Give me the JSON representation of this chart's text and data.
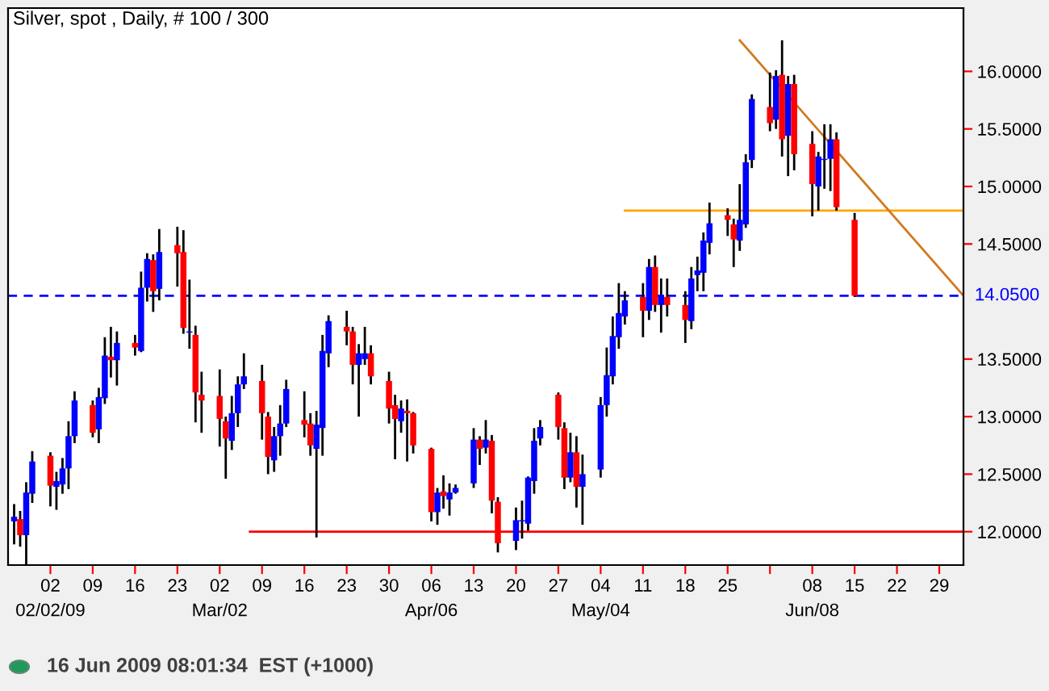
{
  "chart_data": {
    "type": "candlestick",
    "title": "Silver, spot , Daily, # 100 / 300",
    "x": [
      "2009-01-27",
      "2009-01-28",
      "2009-01-29",
      "2009-01-30",
      "2009-02-02",
      "2009-02-03",
      "2009-02-04",
      "2009-02-05",
      "2009-02-06",
      "2009-02-09",
      "2009-02-10",
      "2009-02-11",
      "2009-02-12",
      "2009-02-13",
      "2009-02-16",
      "2009-02-17",
      "2009-02-18",
      "2009-02-19",
      "2009-02-20",
      "2009-02-23",
      "2009-02-24",
      "2009-02-25",
      "2009-02-26",
      "2009-02-27",
      "2009-03-02",
      "2009-03-03",
      "2009-03-04",
      "2009-03-05",
      "2009-03-06",
      "2009-03-09",
      "2009-03-10",
      "2009-03-11",
      "2009-03-12",
      "2009-03-13",
      "2009-03-16",
      "2009-03-17",
      "2009-03-18",
      "2009-03-19",
      "2009-03-20",
      "2009-03-23",
      "2009-03-24",
      "2009-03-25",
      "2009-03-26",
      "2009-03-27",
      "2009-03-30",
      "2009-03-31",
      "2009-04-01",
      "2009-04-02",
      "2009-04-03",
      "2009-04-06",
      "2009-04-07",
      "2009-04-08",
      "2009-04-09",
      "2009-04-10",
      "2009-04-13",
      "2009-04-14",
      "2009-04-15",
      "2009-04-16",
      "2009-04-17",
      "2009-04-20",
      "2009-04-21",
      "2009-04-22",
      "2009-04-23",
      "2009-04-24",
      "2009-04-27",
      "2009-04-28",
      "2009-04-29",
      "2009-04-30",
      "2009-05-01",
      "2009-05-04",
      "2009-05-05",
      "2009-05-06",
      "2009-05-07",
      "2009-05-08",
      "2009-05-11",
      "2009-05-12",
      "2009-05-13",
      "2009-05-14",
      "2009-05-15",
      "2009-05-18",
      "2009-05-19",
      "2009-05-20",
      "2009-05-21",
      "2009-05-22",
      "2009-05-25",
      "2009-05-26",
      "2009-05-27",
      "2009-05-28",
      "2009-05-29",
      "2009-06-01",
      "2009-06-02",
      "2009-06-03",
      "2009-06-04",
      "2009-06-05",
      "2009-06-08",
      "2009-06-09",
      "2009-06-10",
      "2009-06-11",
      "2009-06-12",
      "2009-06-15"
    ],
    "ohlc": [
      [
        12.09,
        12.24,
        11.89,
        12.13
      ],
      [
        12.11,
        12.18,
        11.87,
        11.97
      ],
      [
        11.97,
        12.43,
        11.67,
        12.34
      ],
      [
        12.33,
        12.7,
        12.25,
        12.61
      ],
      [
        12.66,
        12.69,
        12.22,
        12.4
      ],
      [
        12.39,
        12.52,
        12.19,
        12.44
      ],
      [
        12.41,
        12.64,
        12.33,
        12.55
      ],
      [
        12.55,
        12.96,
        12.37,
        12.83
      ],
      [
        12.83,
        13.22,
        12.77,
        13.14
      ],
      [
        13.1,
        13.14,
        12.82,
        12.86
      ],
      [
        12.89,
        13.25,
        12.77,
        13.17
      ],
      [
        13.16,
        13.69,
        13.11,
        13.53
      ],
      [
        13.52,
        13.78,
        13.34,
        13.49
      ],
      [
        13.49,
        13.74,
        13.27,
        13.64
      ],
      [
        13.64,
        13.71,
        13.53,
        13.6
      ],
      [
        13.57,
        14.26,
        13.56,
        14.12
      ],
      [
        14.12,
        14.42,
        14.0,
        14.37
      ],
      [
        14.36,
        14.41,
        13.91,
        14.09
      ],
      [
        14.11,
        14.63,
        14.01,
        14.43
      ],
      [
        14.49,
        14.65,
        14.13,
        14.42
      ],
      [
        14.43,
        14.62,
        13.72,
        13.77
      ],
      [
        13.73,
        14.19,
        13.59,
        13.74
      ],
      [
        13.71,
        13.79,
        12.95,
        13.21
      ],
      [
        13.19,
        13.39,
        12.86,
        13.14
      ],
      [
        13.18,
        13.41,
        12.74,
        12.98
      ],
      [
        12.96,
        13.0,
        12.46,
        12.81
      ],
      [
        12.79,
        13.18,
        12.71,
        13.03
      ],
      [
        13.03,
        13.35,
        12.91,
        13.28
      ],
      [
        13.28,
        13.55,
        13.24,
        13.35
      ],
      [
        13.31,
        13.45,
        12.8,
        13.03
      ],
      [
        13.0,
        13.04,
        12.5,
        12.65
      ],
      [
        12.62,
        12.91,
        12.52,
        12.83
      ],
      [
        12.83,
        13.1,
        12.66,
        12.94
      ],
      [
        12.94,
        13.32,
        12.91,
        13.24
      ],
      [
        12.97,
        13.22,
        12.82,
        12.93
      ],
      [
        12.94,
        13.03,
        12.66,
        12.75
      ],
      [
        12.72,
        13.05,
        11.95,
        12.93
      ],
      [
        12.9,
        13.71,
        12.66,
        13.57
      ],
      [
        13.55,
        13.88,
        13.43,
        13.83
      ],
      [
        13.78,
        13.92,
        13.62,
        13.74
      ],
      [
        13.74,
        13.78,
        13.28,
        13.45
      ],
      [
        13.45,
        13.63,
        13.0,
        13.55
      ],
      [
        13.5,
        13.78,
        13.45,
        13.55
      ],
      [
        13.55,
        13.62,
        13.28,
        13.35
      ],
      [
        13.31,
        13.39,
        12.94,
        13.07
      ],
      [
        13.1,
        13.19,
        12.63,
        12.98
      ],
      [
        12.96,
        13.14,
        12.86,
        13.07
      ],
      [
        13.05,
        13.15,
        12.61,
        13.03
      ],
      [
        13.03,
        13.04,
        12.68,
        12.75
      ],
      [
        12.72,
        12.73,
        12.09,
        12.17
      ],
      [
        12.17,
        12.38,
        12.06,
        12.34
      ],
      [
        12.35,
        12.49,
        12.2,
        12.31
      ],
      [
        12.28,
        12.42,
        12.14,
        12.34
      ],
      [
        12.34,
        12.41,
        12.33,
        12.38
      ],
      [
        12.42,
        12.9,
        12.38,
        12.8
      ],
      [
        12.8,
        12.83,
        12.58,
        12.72
      ],
      [
        12.73,
        12.97,
        12.68,
        12.8
      ],
      [
        12.79,
        12.84,
        12.16,
        12.27
      ],
      [
        12.26,
        12.3,
        11.82,
        11.9
      ],
      [
        11.92,
        12.21,
        11.84,
        12.1
      ],
      [
        12.09,
        12.27,
        11.94,
        12.1
      ],
      [
        12.07,
        12.48,
        12.01,
        12.47
      ],
      [
        12.44,
        12.9,
        12.33,
        12.79
      ],
      [
        12.81,
        12.97,
        12.75,
        12.91
      ],
      [
        13.19,
        13.21,
        12.8,
        12.91
      ],
      [
        12.9,
        12.95,
        12.37,
        12.47
      ],
      [
        12.47,
        12.86,
        12.43,
        12.69
      ],
      [
        12.69,
        12.83,
        12.21,
        12.39
      ],
      [
        12.39,
        12.67,
        12.06,
        12.5
      ],
      [
        12.54,
        13.17,
        12.47,
        13.1
      ],
      [
        13.1,
        13.6,
        13.0,
        13.36
      ],
      [
        13.35,
        13.87,
        13.28,
        13.7
      ],
      [
        13.69,
        14.16,
        13.59,
        13.9
      ],
      [
        13.87,
        14.09,
        13.8,
        14.01
      ],
      [
        14.04,
        14.16,
        13.69,
        13.92
      ],
      [
        13.92,
        14.37,
        13.84,
        14.3
      ],
      [
        14.3,
        14.4,
        13.91,
        13.97
      ],
      [
        13.97,
        14.2,
        13.73,
        14.06
      ],
      [
        14.04,
        14.2,
        13.87,
        13.97
      ],
      [
        13.97,
        14.09,
        13.64,
        13.84
      ],
      [
        13.83,
        14.3,
        13.76,
        14.2
      ],
      [
        14.23,
        14.39,
        14.09,
        14.27
      ],
      [
        14.25,
        14.6,
        14.09,
        14.53
      ],
      [
        14.51,
        14.86,
        14.41,
        14.68
      ],
      [
        14.75,
        14.81,
        14.57,
        14.71
      ],
      [
        14.67,
        14.72,
        14.3,
        14.54
      ],
      [
        14.53,
        15.02,
        14.44,
        14.71
      ],
      [
        14.67,
        15.28,
        14.64,
        15.21
      ],
      [
        15.23,
        15.8,
        15.16,
        15.76
      ],
      [
        15.69,
        15.99,
        15.48,
        15.55
      ],
      [
        15.58,
        16.01,
        15.5,
        15.96
      ],
      [
        15.97,
        16.27,
        15.26,
        15.41
      ],
      [
        15.44,
        15.96,
        15.09,
        15.89
      ],
      [
        15.89,
        15.97,
        15.14,
        15.28
      ],
      [
        15.37,
        15.48,
        14.74,
        15.02
      ],
      [
        15.0,
        15.3,
        14.79,
        15.26
      ],
      [
        15.23,
        15.54,
        14.98,
        15.24
      ],
      [
        15.24,
        15.54,
        14.96,
        15.41
      ],
      [
        15.41,
        15.47,
        14.79,
        14.82
      ],
      [
        14.71,
        14.77,
        14.04,
        14.05
      ]
    ],
    "colors": [
      "#0000ff",
      "#ff0000",
      "#0000ff",
      "#0000ff",
      "#ff0000",
      "#0000ff",
      "#0000ff",
      "#0000ff",
      "#0000ff",
      "#ff0000",
      "#0000ff",
      "#0000ff",
      "#ff0000",
      "#0000ff",
      "#ff0000",
      "#0000ff",
      "#0000ff",
      "#ff0000",
      "#0000ff",
      "#ff0000",
      "#ff0000",
      "#0000ff",
      "#ff0000",
      "#ff0000",
      "#ff0000",
      "#ff0000",
      "#0000ff",
      "#0000ff",
      "#0000ff",
      "#ff0000",
      "#ff0000",
      "#0000ff",
      "#0000ff",
      "#0000ff",
      "#ff0000",
      "#ff0000",
      "#0000ff",
      "#0000ff",
      "#0000ff",
      "#ff0000",
      "#ff0000",
      "#0000ff",
      "#0000ff",
      "#ff0000",
      "#ff0000",
      "#ff0000",
      "#0000ff",
      "#ff0000",
      "#ff0000",
      "#ff0000",
      "#0000ff",
      "#ff0000",
      "#0000ff",
      "#0000ff",
      "#0000ff",
      "#ff0000",
      "#0000ff",
      "#ff0000",
      "#ff0000",
      "#0000ff",
      "#0000ff",
      "#0000ff",
      "#0000ff",
      "#0000ff",
      "#ff0000",
      "#ff0000",
      "#0000ff",
      "#ff0000",
      "#0000ff",
      "#0000ff",
      "#0000ff",
      "#0000ff",
      "#0000ff",
      "#0000ff",
      "#ff0000",
      "#0000ff",
      "#ff0000",
      "#0000ff",
      "#ff0000",
      "#ff0000",
      "#0000ff",
      "#0000ff",
      "#0000ff",
      "#0000ff",
      "#ff0000",
      "#ff0000",
      "#0000ff",
      "#0000ff",
      "#0000ff",
      "#ff0000",
      "#0000ff",
      "#ff0000",
      "#0000ff",
      "#ff0000",
      "#ff0000",
      "#0000ff",
      "#0000ff",
      "#0000ff",
      "#ff0000",
      "#ff0000"
    ],
    "series": [
      {
        "type": "line",
        "color": "#ff0000",
        "x": [
          "2009-03-07",
          "2009-07-03"
        ],
        "values": [
          12.0,
          12.0
        ]
      },
      {
        "type": "line",
        "color": "#ffa500",
        "x": [
          "2009-05-08",
          "2009-07-03"
        ],
        "values": [
          14.79,
          14.79
        ]
      },
      {
        "type": "line",
        "color": "#d2781e",
        "x": [
          "2009-05-27",
          "2009-07-03"
        ],
        "values": [
          16.27,
          14.05
        ]
      }
    ],
    "ref_lines": [
      {
        "axis": "y",
        "value": 14.05,
        "label": "14.0500",
        "color": "#0000ff",
        "line_style": "dashed"
      }
    ],
    "xlim": [
      "2009-01-26",
      "2009-07-03"
    ],
    "xticks": [
      {
        "value": "2009-02-02",
        "label": "02\n02/02/09"
      },
      {
        "value": "2009-02-09",
        "label": "09"
      },
      {
        "value": "2009-02-16",
        "label": "16"
      },
      {
        "value": "2009-02-23",
        "label": "23"
      },
      {
        "value": "2009-03-02",
        "label": "02\nMar/02"
      },
      {
        "value": "2009-03-09",
        "label": "09"
      },
      {
        "value": "2009-03-16",
        "label": "16"
      },
      {
        "value": "2009-03-23",
        "label": "23"
      },
      {
        "value": "2009-03-30",
        "label": "30"
      },
      {
        "value": "2009-04-06",
        "label": "06\nApr/06"
      },
      {
        "value": "2009-04-13",
        "label": "13"
      },
      {
        "value": "2009-04-20",
        "label": "20"
      },
      {
        "value": "2009-04-27",
        "label": "27"
      },
      {
        "value": "2009-05-04",
        "label": "04\nMay/04"
      },
      {
        "value": "2009-05-11",
        "label": "11"
      },
      {
        "value": "2009-05-18",
        "label": "18"
      },
      {
        "value": "2009-05-25",
        "label": "25"
      },
      {
        "value": "2009-06-01",
        "label": null
      },
      {
        "value": "2009-06-08",
        "label": "08\nJun/08"
      },
      {
        "value": "2009-06-15",
        "label": "15"
      },
      {
        "value": "2009-06-22",
        "label": "22"
      },
      {
        "value": "2009-06-29",
        "label": "29"
      }
    ],
    "ylim": [
      11.71,
      16.55
    ],
    "yticks": [
      {
        "value": 12.0,
        "label": "12.0000"
      },
      {
        "value": 12.5,
        "label": "12.5000"
      },
      {
        "value": 13.0,
        "label": "13.0000"
      },
      {
        "value": 13.5,
        "label": "13.5000"
      },
      {
        "value": 14.5,
        "label": "14.5000"
      },
      {
        "value": 15.0,
        "label": "15.0000"
      },
      {
        "value": 15.5,
        "label": "15.5000"
      },
      {
        "value": 16.0,
        "label": "16.0000"
      }
    ],
    "grid": false,
    "legend": false,
    "annotations": [
      "16 Jun 2009 08:01:34  EST (+1000)"
    ]
  }
}
